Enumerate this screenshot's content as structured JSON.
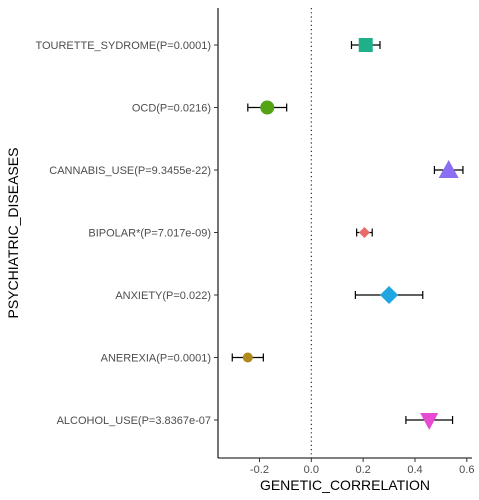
{
  "chart_data": {
    "type": "scatter",
    "subtype": "forest-plot",
    "xlabel": "GENETIC_CORRELATION",
    "ylabel": "PSYCHIATRIC_DISEASES",
    "xlim": [
      -0.36,
      0.62
    ],
    "x_ticks": [
      -0.2,
      0.0,
      0.2,
      0.4,
      0.6
    ],
    "x_tick_labels": [
      "-0.2",
      "0.0",
      "0.2",
      "0.4",
      "0.6"
    ],
    "reference_line": {
      "x": 0,
      "style": "dotted"
    },
    "grid": false,
    "legend": "none",
    "categories": [
      "TOURETTE_SYDROME(P=0.0001)",
      "OCD(P=0.0216)",
      "CANNABIS_USE(P=9.3455e-22)",
      "BIPOLAR*(P=7.017e-09)",
      "ANXIETY(P=0.022)",
      "ANEREXIA(P=0.0001)",
      "ALCOHOL_USE(P=3.8367e-07"
    ],
    "points": [
      {
        "estimate": 0.21,
        "lower": 0.155,
        "upper": 0.265,
        "color": "#1FB08A",
        "shape": "square"
      },
      {
        "estimate": -0.17,
        "lower": -0.245,
        "upper": -0.095,
        "color": "#53A315",
        "shape": "circle"
      },
      {
        "estimate": 0.53,
        "lower": 0.475,
        "upper": 0.585,
        "color": "#8B6EF2",
        "shape": "triangle-up"
      },
      {
        "estimate": 0.205,
        "lower": 0.175,
        "upper": 0.235,
        "color": "#EA6B6B",
        "shape": "diamond-small"
      },
      {
        "estimate": 0.3,
        "lower": 0.17,
        "upper": 0.43,
        "color": "#1FA6E2",
        "shape": "diamond"
      },
      {
        "estimate": -0.245,
        "lower": -0.305,
        "upper": -0.185,
        "color": "#B0891A",
        "shape": "circle-small"
      },
      {
        "estimate": 0.455,
        "lower": 0.365,
        "upper": 0.545,
        "color": "#E64BD2",
        "shape": "triangle-down"
      }
    ]
  }
}
